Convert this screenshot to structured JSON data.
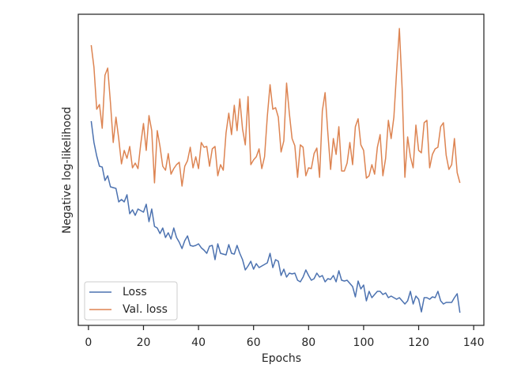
{
  "chart_data": {
    "type": "line",
    "xlabel": "Epochs",
    "ylabel": "Negative log-likelihood",
    "x": [
      1,
      2,
      3,
      4,
      5,
      6,
      7,
      8,
      9,
      10,
      11,
      12,
      13,
      14,
      15,
      16,
      17,
      18,
      19,
      20,
      21,
      22,
      23,
      24,
      25,
      26,
      27,
      28,
      29,
      30,
      31,
      32,
      33,
      34,
      35,
      36,
      37,
      38,
      39,
      40,
      41,
      42,
      43,
      44,
      45,
      46,
      47,
      48,
      49,
      50,
      51,
      52,
      53,
      54,
      55,
      56,
      57,
      58,
      59,
      60,
      61,
      62,
      63,
      64,
      65,
      66,
      67,
      68,
      69,
      70,
      71,
      72,
      73,
      74,
      75,
      76,
      77,
      78,
      79,
      80,
      81,
      82,
      83,
      84,
      85,
      86,
      87,
      88,
      89,
      90,
      91,
      92,
      93,
      94,
      95,
      96,
      97,
      98,
      99,
      100,
      101,
      102,
      103,
      104,
      105,
      106,
      107,
      108,
      109,
      110,
      111,
      112,
      113,
      114,
      115,
      116,
      117,
      118,
      119,
      120,
      121,
      122,
      123,
      124,
      125,
      126,
      127,
      128,
      129,
      130,
      131,
      132,
      133,
      134,
      135
    ],
    "series": [
      {
        "name": "Loss",
        "color": "#4c72b0",
        "values": [
          258,
          231,
          214,
          201,
          200,
          183,
          189,
          175,
          174,
          173,
          156,
          159,
          156,
          165,
          141,
          146,
          139,
          147,
          145,
          143,
          153,
          131,
          147,
          125,
          123,
          116,
          123,
          111,
          117,
          109,
          123,
          111,
          105,
          97,
          107,
          113,
          101,
          100,
          101,
          103,
          98,
          95,
          91,
          100,
          101,
          83,
          103,
          91,
          90,
          89,
          102,
          91,
          90,
          101,
          91,
          83,
          70,
          75,
          81,
          71,
          78,
          73,
          75,
          77,
          79,
          91,
          73,
          83,
          81,
          63,
          71,
          61,
          66,
          65,
          66,
          57,
          55,
          61,
          70,
          63,
          57,
          59,
          66,
          61,
          63,
          55,
          59,
          58,
          63,
          55,
          69,
          57,
          56,
          57,
          53,
          49,
          36,
          56,
          46,
          51,
          31,
          43,
          35,
          39,
          43,
          43,
          39,
          41,
          35,
          37,
          35,
          33,
          35,
          31,
          27,
          31,
          43,
          27,
          37,
          33,
          17,
          35,
          35,
          33,
          36,
          35,
          43,
          31,
          27,
          29,
          29,
          29,
          35,
          40,
          16
        ]
      },
      {
        "name": "Val. loss",
        "color": "#dd8452",
        "values": [
          354,
          326,
          273,
          279,
          249,
          316,
          325,
          281,
          231,
          263,
          236,
          204,
          221,
          211,
          226,
          199,
          205,
          198,
          229,
          255,
          221,
          265,
          246,
          180,
          246,
          226,
          201,
          196,
          217,
          191,
          198,
          203,
          206,
          176,
          201,
          208,
          225,
          199,
          213,
          198,
          231,
          225,
          226,
          201,
          223,
          226,
          189,
          203,
          196,
          243,
          268,
          241,
          278,
          246,
          286,
          248,
          228,
          289,
          203,
          209,
          213,
          223,
          198,
          213,
          264,
          304,
          273,
          275,
          263,
          219,
          233,
          306,
          268,
          236,
          227,
          187,
          228,
          225,
          189,
          199,
          198,
          217,
          224,
          187,
          271,
          294,
          243,
          197,
          236,
          216,
          251,
          195,
          195,
          205,
          231,
          203,
          251,
          261,
          228,
          221,
          186,
          189,
          203,
          191,
          225,
          241,
          189,
          211,
          259,
          236,
          263,
          321,
          375,
          299,
          187,
          238,
          213,
          199,
          253,
          221,
          218,
          256,
          259,
          199,
          216,
          223,
          225,
          251,
          256,
          215,
          197,
          203,
          236,
          193,
          180
        ]
      }
    ],
    "xlim": [
      -3.7,
      143.7
    ],
    "xticks": [
      0,
      20,
      40,
      60,
      80,
      100,
      120,
      140
    ],
    "ylim": [
      0,
      393
    ],
    "legend": "lower left"
  }
}
